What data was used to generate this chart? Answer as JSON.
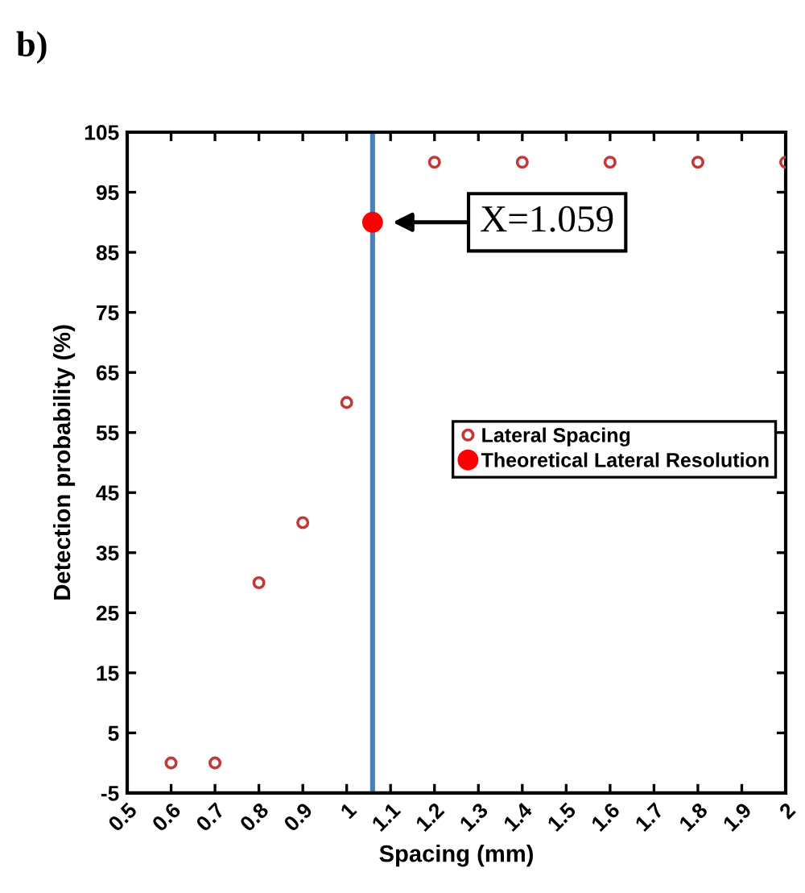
{
  "chart_data": {
    "type": "scatter",
    "title": "b)",
    "xlabel": "Spacing (mm)",
    "ylabel": "Detection probability (%)",
    "series": [
      {
        "name": "Lateral Spacing",
        "color": "#c03a3a",
        "x": [
          0.6,
          0.7,
          0.8,
          0.9,
          1.0,
          1.2,
          1.4,
          1.6,
          1.8,
          2.0
        ],
        "values": [
          0,
          0,
          30,
          40,
          60,
          100,
          100,
          100,
          100,
          100
        ]
      },
      {
        "name": "Theoretical Lateral Resolution",
        "color": "#ff0000",
        "x": [
          1.059
        ],
        "values": [
          90
        ]
      }
    ],
    "ref_lines": [
      {
        "axis": "x",
        "value": 1.059,
        "label": null,
        "color": "#4a7fc1"
      }
    ],
    "annotations": [
      {
        "text": "X=1.059",
        "x": 1.059,
        "y": 90
      }
    ],
    "xlim": [
      0.5,
      2
    ],
    "xticks": [
      0.5,
      0.6,
      0.7,
      0.8,
      0.9,
      1,
      1.1,
      1.2,
      1.3,
      1.4,
      1.5,
      1.6,
      1.7,
      1.8,
      1.9,
      2
    ],
    "ylim": [
      -5,
      105
    ],
    "yticks": [
      -5,
      5,
      15,
      25,
      35,
      45,
      55,
      65,
      75,
      85,
      95,
      105
    ],
    "marker": "circle",
    "grid": false,
    "legend": "right"
  }
}
